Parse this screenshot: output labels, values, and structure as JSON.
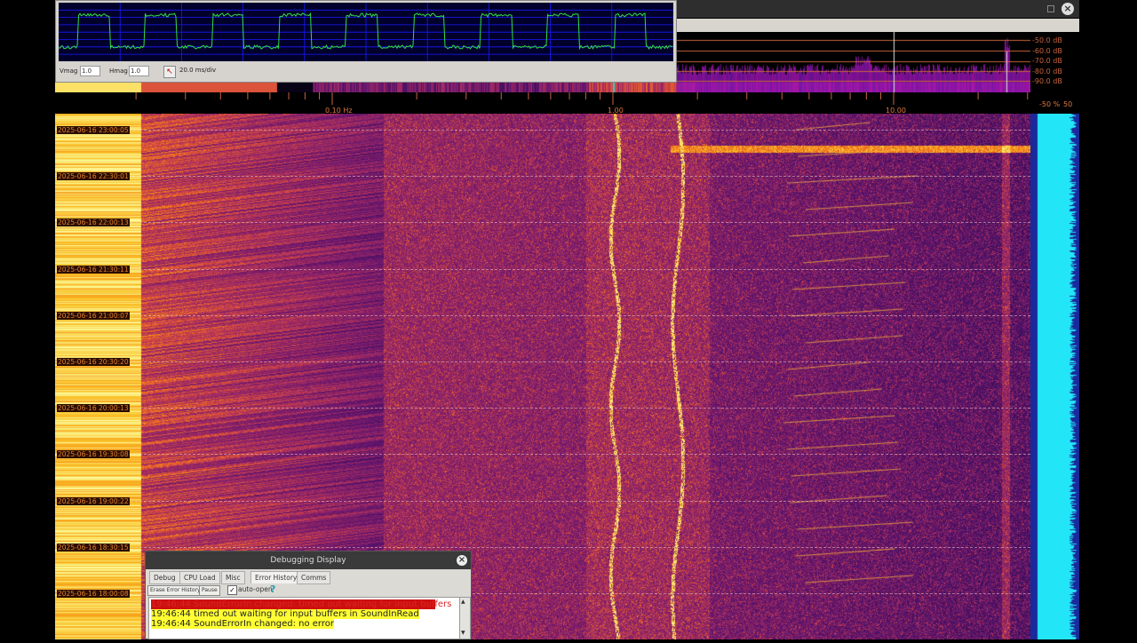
{
  "main_window": {
    "title": "",
    "controls": {
      "maximize_icon": "square-icon",
      "close_icon": "close-icon"
    },
    "spectrum": {
      "db_labels": [
        "-50.0 dB",
        "-60.0 dB",
        "-70.0 dB",
        "-80.0 dB",
        "-90.0 dB"
      ]
    },
    "frequency_axis": {
      "scale": "log",
      "labels": [
        "0.10 Hz",
        "1.00",
        "10.00"
      ],
      "range_hz": [
        0.01,
        30
      ]
    },
    "percent_scale": {
      "labels": [
        "-50 %",
        "50"
      ]
    },
    "waterfall": {
      "colormap": "inferno",
      "timestamps": [
        "2025-06-16 23:00:05",
        "2025-06-16 22:30:01",
        "2025-06-16 22:00:13",
        "2025-06-16 21:30:11",
        "2025-06-16 21:00:07",
        "2025-06-16 20:30:20",
        "2025-06-16 20:00:13",
        "2025-06-16 19:30:08",
        "2025-06-16 19:00:22",
        "2025-06-16 18:30:15",
        "2025-06-16 18:00:08"
      ]
    }
  },
  "scope_window": {
    "vmag_label": "Vmag",
    "vmag_value": "1.0",
    "hmag_label": "Hmag",
    "hmag_value": "1.0",
    "trigger_icon": "cursor-arrow-icon",
    "timebase": "20.0 ms/div",
    "trace_color": "#33dd44",
    "grid_color": "#1a1aff"
  },
  "debug_dialog": {
    "title": "Debugging Display",
    "tabs": [
      "Debug",
      "CPU Load",
      "Misc",
      "Error History",
      "Comms"
    ],
    "active_tab": "Error History",
    "erase_button": "Erase Error History",
    "pause_button": "Pause",
    "auto_open_label": "auto-open",
    "auto_open_checked": true,
    "help_icon": "question-icon",
    "log": [
      {
        "text": "19:46:44 SoundErrorIn changed: timed out waiting for input buffers",
        "highlight": "#cc1010"
      },
      {
        "text": "19:46:44 timed out waiting for input buffers in SoundInRead",
        "highlight": "#ffff33"
      },
      {
        "text": "19:46:44 SoundErrorIn  changed: no error",
        "highlight": "#ffff33"
      }
    ]
  }
}
